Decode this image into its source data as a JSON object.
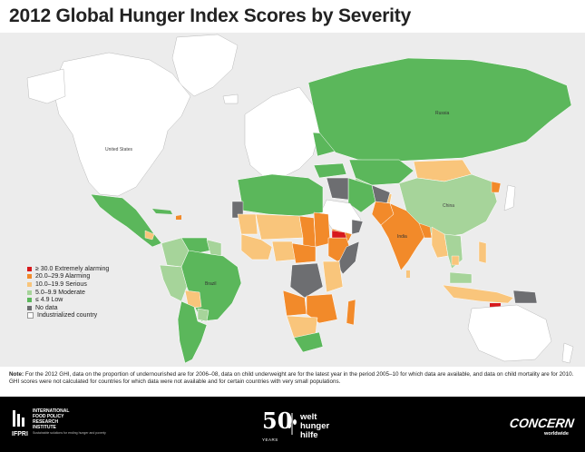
{
  "title": "2012 Global Hunger Index Scores by Severity",
  "colors": {
    "ocean": "#ececec",
    "extremely_alarming": "#d7191c",
    "alarming": "#f28a2a",
    "serious": "#f9c57b",
    "moderate": "#a6d49a",
    "low": "#5bb75b",
    "no_data": "#6d6e71",
    "industrialized": "#ffffff"
  },
  "legend": [
    {
      "label": "≥ 30.0 Extremely alarming",
      "color": "#d7191c"
    },
    {
      "label": "20.0–29.9 Alarming",
      "color": "#f28a2a"
    },
    {
      "label": "10.0–19.9 Serious",
      "color": "#f9c57b"
    },
    {
      "label": "5.0–9.9 Moderate",
      "color": "#a6d49a"
    },
    {
      "label": "≤ 4.9 Low",
      "color": "#5bb75b"
    },
    {
      "label": "No data",
      "color": "#6d6e71"
    },
    {
      "label": "Industrialized country",
      "color": "#ffffff"
    }
  ],
  "map_labels": {
    "us": "United States",
    "china": "China",
    "russia": "Russia",
    "india": "India",
    "brazil": "Brazil"
  },
  "note": {
    "label": "Note:",
    "text": "For the 2012 GHI, data on the proportion of undernourished are for 2006–08, data on child underweight are for the latest year in the period 2005–10 for which data are available, and data on child mortality are for 2010. GHI scores were not calculated for countries for which data were not available and for certain countries with very small populations."
  },
  "footer": {
    "ifpri_lines": [
      "INTERNATIONAL",
      "FOOD POLICY",
      "RESEARCH",
      "INSTITUTE"
    ],
    "ifpri_abbr": "IFPRI",
    "ifpri_sub": "Sustainable solutions for ending hunger and poverty",
    "whh_number": "50",
    "whh_years": "YEARS",
    "whh_lines": [
      "welt",
      "hunger",
      "hilfe"
    ],
    "concern": "CONCERN",
    "concern_sub": "worldwide"
  }
}
